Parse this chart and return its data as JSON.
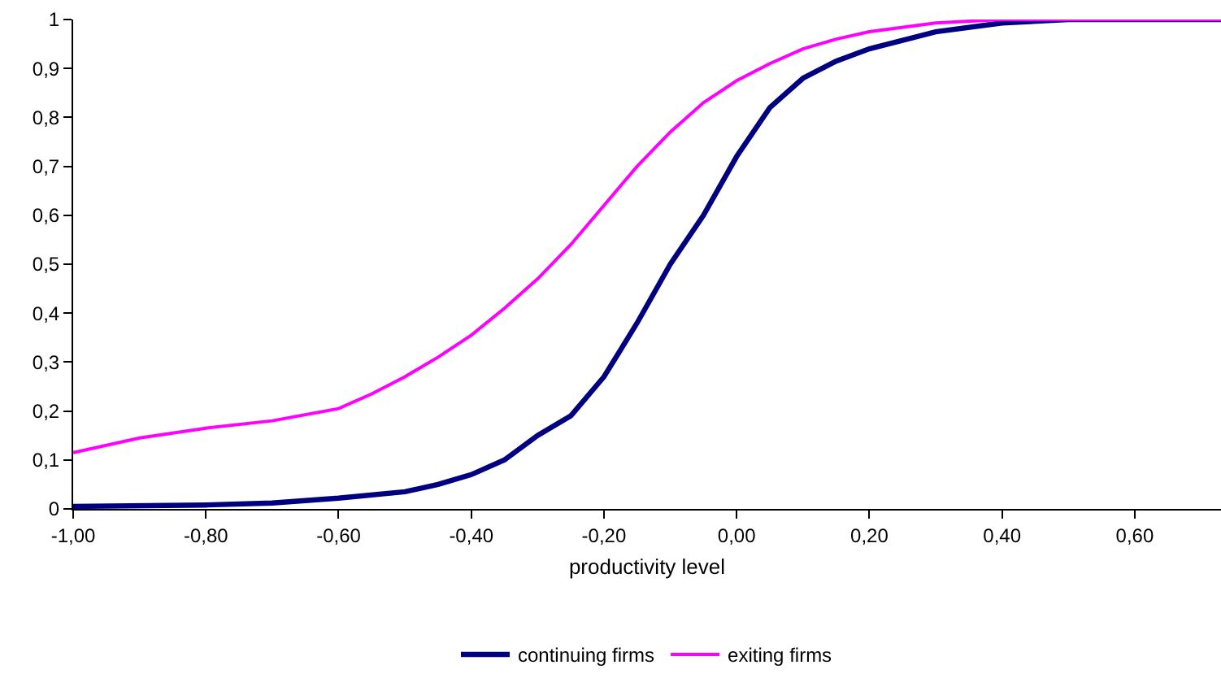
{
  "chart_data": {
    "type": "line",
    "xlabel": "productivity level",
    "xlim": [
      -1,
      0.73
    ],
    "xticks": [
      {
        "value": -1,
        "label": "-1,00"
      },
      {
        "value": -0.8,
        "label": "-0,80"
      },
      {
        "value": -0.6,
        "label": "-0,60"
      },
      {
        "value": -0.4,
        "label": "-0,40"
      },
      {
        "value": -0.2,
        "label": "-0,20"
      },
      {
        "value": 0,
        "label": "0,00"
      },
      {
        "value": 0.2,
        "label": "0,20"
      },
      {
        "value": 0.4,
        "label": "0,40"
      },
      {
        "value": 0.6,
        "label": "0,60"
      }
    ],
    "ylim": [
      0,
      1
    ],
    "yticks": [
      0,
      {
        "value": 0.1,
        "label": "0,1"
      },
      {
        "value": 0.2,
        "label": "0,2"
      },
      {
        "value": 0.3,
        "label": "0,3"
      },
      {
        "value": 0.4,
        "label": "0,4"
      },
      {
        "value": 0.5,
        "label": "0,5"
      },
      {
        "value": 0.6,
        "label": "0,6"
      },
      {
        "value": 0.7,
        "label": "0,7"
      },
      {
        "value": 0.8,
        "label": "0,8"
      },
      {
        "value": 0.9,
        "label": "0,9"
      },
      1
    ],
    "grid": false,
    "legend": "bottom",
    "marker": "none",
    "line_style": "solid",
    "series": [
      {
        "name": "continuing firms",
        "color": "#000080",
        "x": [
          -1,
          -0.8,
          -0.7,
          -0.6,
          -0.5,
          -0.45,
          -0.4,
          -0.35,
          -0.3,
          -0.25,
          -0.2,
          -0.15,
          -0.1,
          -0.05,
          0,
          0.05,
          0.1,
          0.15,
          0.2,
          0.3,
          0.4,
          0.5,
          0.73
        ],
        "values": [
          0.005,
          0.008,
          0.012,
          0.022,
          0.035,
          0.05,
          0.07,
          0.1,
          0.15,
          0.19,
          0.27,
          0.38,
          0.5,
          0.6,
          0.72,
          0.82,
          0.88,
          0.915,
          0.94,
          0.975,
          0.993,
          1,
          1
        ]
      },
      {
        "name": "exiting firms",
        "color": "#ff00ff",
        "x": [
          -1,
          -0.9,
          -0.8,
          -0.7,
          -0.6,
          -0.55,
          -0.5,
          -0.45,
          -0.4,
          -0.35,
          -0.3,
          -0.25,
          -0.2,
          -0.15,
          -0.1,
          -0.05,
          0,
          0.05,
          0.1,
          0.15,
          0.2,
          0.3,
          0.4,
          0.73
        ],
        "values": [
          0.115,
          0.145,
          0.165,
          0.18,
          0.205,
          0.235,
          0.27,
          0.31,
          0.355,
          0.41,
          0.47,
          0.54,
          0.62,
          0.7,
          0.77,
          0.83,
          0.875,
          0.91,
          0.94,
          0.96,
          0.975,
          0.993,
          1,
          1
        ]
      }
    ]
  }
}
